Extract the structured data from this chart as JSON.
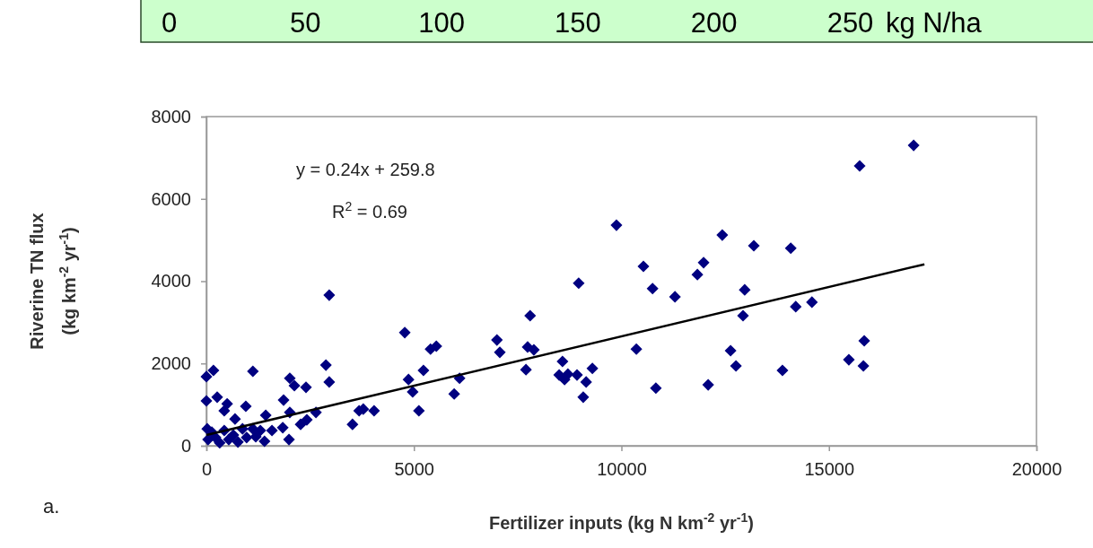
{
  "chart_data": {
    "type": "scatter",
    "xlabel": "Fertilizer inputs (kg N km$^{-2}$ yr$^{-1}$)",
    "ylabel": "Riverine TN flux\n(kg km$^{-2}$ yr$^{-1}$)",
    "xlim": [
      0,
      20000
    ],
    "xticks": [
      0,
      5000,
      10000,
      15000,
      20000
    ],
    "ylim": [
      0,
      8000
    ],
    "yticks": [
      0,
      2000,
      4000,
      6000,
      8000
    ],
    "x2lim": [
      0,
      250
    ],
    "x2ticks": [
      0,
      50,
      100,
      150,
      200,
      250
    ],
    "x2label": "kg N/ha",
    "grid": false,
    "annotations": [
      "y = 0.24x + 259.8",
      "R$^{2}$ = 0.69",
      "a."
    ],
    "series": [
      {
        "marker": "diamond",
        "color": "#000080",
        "x": [
          0,
          170,
          1120,
          2880,
          2960,
          2010,
          2120,
          2400,
          0,
          260,
          500,
          430,
          950,
          1860,
          1430,
          2010,
          2640,
          690,
          2420,
          2270,
          1840,
          1120,
          1580,
          1990,
          1400,
          20,
          40,
          130,
          220,
          320,
          430,
          540,
          650,
          760,
          870,
          970,
          1190,
          1300,
          3520,
          3680,
          3780,
          4040,
          4870,
          4970,
          5120,
          5230,
          2960,
          4780,
          5400,
          5540,
          7000,
          7070,
          7800,
          7740,
          7890,
          6100,
          5970,
          7700,
          8970,
          8580,
          8500,
          8630,
          8710,
          8930,
          9150,
          9300,
          9080,
          10360,
          10530,
          10750,
          11290,
          10830,
          11830,
          11980,
          12090,
          12430,
          12630,
          12760,
          17040,
          15740,
          13190,
          14080,
          12970,
          12930,
          14200,
          14590,
          13880,
          15480,
          15850,
          15830,
          9880
        ],
        "values": [
          1680,
          1830,
          1810,
          1960,
          1550,
          1640,
          1460,
          1420,
          1090,
          1180,
          1020,
          850,
          960,
          1110,
          740,
          810,
          810,
          650,
          630,
          520,
          440,
          410,
          370,
          150,
          110,
          410,
          150,
          330,
          200,
          70,
          370,
          150,
          260,
          90,
          410,
          200,
          220,
          370,
          520,
          850,
          890,
          850,
          1610,
          1310,
          850,
          1830,
          3660,
          2750,
          2350,
          2420,
          2570,
          2270,
          3160,
          2400,
          2330,
          1640,
          1260,
          1850,
          3950,
          2050,
          1720,
          1610,
          1740,
          1720,
          1550,
          1880,
          1180,
          2350,
          4360,
          3820,
          3620,
          1400,
          4160,
          4450,
          1480,
          5120,
          2310,
          1940,
          7300,
          6800,
          4860,
          4800,
          3790,
          3160,
          3380,
          3490,
          1830,
          2090,
          2550,
          1940,
          5360
        ]
      },
      {
        "type": "line",
        "color": "#000000",
        "line_style": "solid",
        "x": [
          0,
          17300
        ],
        "values": [
          260,
          4410
        ]
      }
    ]
  }
}
